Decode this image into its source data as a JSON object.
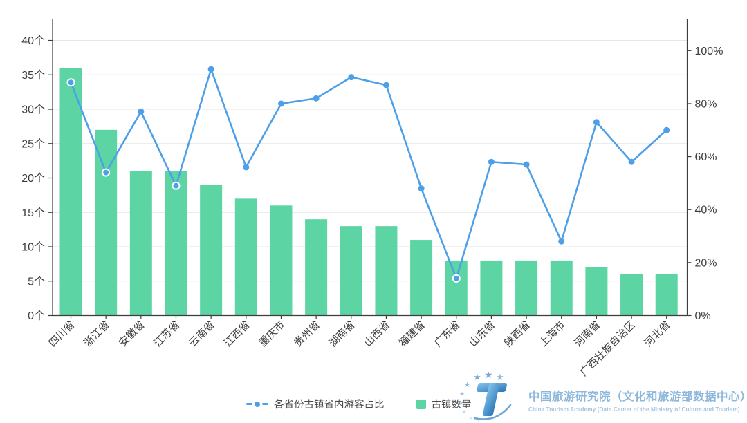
{
  "colors": {
    "bar": "#5dd4a3",
    "line": "#4d9fe8",
    "axis": "#3d3d3d",
    "grid": "#e6e6e6",
    "tick_label": "#3c3c3c",
    "brand_blue": "#8db7dc",
    "brand_blue_light": "#a5c5e3"
  },
  "legend": [
    {
      "label": "各省份古镇省内游客占比",
      "series_type": "line"
    },
    {
      "label": "古镇数量",
      "series_type": "bar"
    }
  ],
  "branding": {
    "logo": "china-tourism-academy-logo",
    "title_cn": "中国旅游研究院（文化和旅游部数据中心）",
    "title_en": "China Tourism Academy (Data Center of the Ministry of Culture and Tourism)"
  },
  "chart_data": {
    "type": "combo",
    "grid": true,
    "legend_position": "bottom",
    "categories": [
      "四川省",
      "浙江省",
      "安徽省",
      "江苏省",
      "云南省",
      "江西省",
      "重庆市",
      "贵州省",
      "湖南省",
      "山西省",
      "福建省",
      "广东省",
      "山东省",
      "陕西省",
      "上海市",
      "河南省",
      "广西壮族自治区",
      "河北省"
    ],
    "series": [
      {
        "name": "古镇数量",
        "type": "bar",
        "axis": "left",
        "unit": "个",
        "values": [
          36,
          27,
          21,
          21,
          19,
          17,
          16,
          14,
          13,
          13,
          11,
          8,
          8,
          8,
          8,
          7,
          6,
          6
        ]
      },
      {
        "name": "各省份古镇省内游客占比",
        "type": "line",
        "axis": "right",
        "unit": "%",
        "values": [
          88,
          54,
          77,
          49,
          93,
          56,
          80,
          82,
          90,
          87,
          48,
          14,
          58,
          57,
          28,
          73,
          58,
          70
        ]
      }
    ],
    "left_axis": {
      "min": 0,
      "max": 40,
      "interval": 5,
      "suffix": "个",
      "tick_labels": [
        "0个",
        "5个",
        "10个",
        "15个",
        "20个",
        "25个",
        "30个",
        "35个",
        "40个"
      ]
    },
    "right_axis": {
      "min": 0,
      "max": 100,
      "interval": 20,
      "suffix": "%",
      "tick_labels": [
        "0%",
        "20%",
        "40%",
        "60%",
        "80%",
        "100%"
      ]
    },
    "highlighted_point_indexes": [
      0,
      1,
      3,
      11
    ],
    "x_label_rotation": -45
  }
}
